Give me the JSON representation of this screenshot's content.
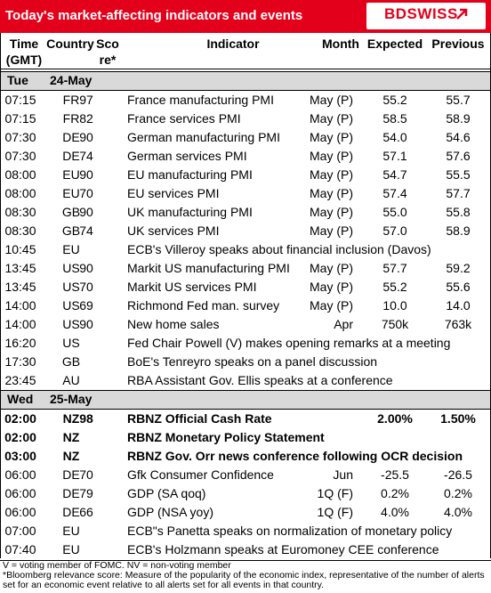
{
  "header": {
    "title": "Today's market-affecting indicators and events",
    "logo": "BDSWISS"
  },
  "columns": [
    [
      "Time",
      "(GMT)"
    ],
    [
      "Country"
    ],
    [
      "Sco",
      "re*"
    ],
    [
      "Indicator"
    ],
    [
      "Month"
    ],
    [
      "Expected"
    ],
    [
      "Previous"
    ]
  ],
  "sections": [
    {
      "day": "Tue",
      "date": "24-May",
      "bold_rows": [],
      "rows": [
        [
          "07:15",
          "FR",
          "97",
          "France manufacturing PMI",
          "May (P)",
          "55.2",
          "55.7"
        ],
        [
          "07:15",
          "FR",
          "82",
          "France services PMI",
          "May (P)",
          "58.5",
          "58.9"
        ],
        [
          "07:30",
          "DE",
          "90",
          "German manufacturing PMI",
          "May (P)",
          "54.0",
          "54.6"
        ],
        [
          "07:30",
          "DE",
          "74",
          "German services PMI",
          "May (P)",
          "57.1",
          "57.6"
        ],
        [
          "08:00",
          "EU",
          "90",
          "EU manufacturing PMI",
          "May (P)",
          "54.7",
          "55.5"
        ],
        [
          "08:00",
          "EU",
          "70",
          "EU services PMI",
          "May (P)",
          "57.4",
          "57.7"
        ],
        [
          "08:30",
          "GB",
          "90",
          "UK manufacturing PMI",
          "May (P)",
          "55.0",
          "55.8"
        ],
        [
          "08:30",
          "GB",
          "74",
          "UK services PMI",
          "May (P)",
          "57.0",
          "58.9"
        ],
        [
          "10:45",
          "EU",
          null,
          "ECB's Villeroy speaks about financial inclusion (Davos)",
          null,
          null,
          null
        ],
        [
          "13:45",
          "US",
          "90",
          "Markit US manufacturing PMI",
          "May (P)",
          "57.7",
          "59.2"
        ],
        [
          "13:45",
          "US",
          "70",
          "Markit US services PMI",
          "May (P)",
          "55.2",
          "55.6"
        ],
        [
          "14:00",
          "US",
          "69",
          "Richmond Fed man. survey",
          "May (P)",
          "10.0",
          "14.0"
        ],
        [
          "14:00",
          "US",
          "90",
          "New home sales",
          "Apr",
          "750k",
          "763k"
        ],
        [
          "16:20",
          "US",
          null,
          "Fed Chair Powell (V) makes opening remarks at a meeting",
          null,
          null,
          null
        ],
        [
          "17:30",
          "GB",
          null,
          "BoE's Tenreyro speaks on a panel discussion",
          null,
          null,
          null
        ],
        [
          "23:45",
          "AU",
          null,
          "RBA Assistant Gov. Ellis speaks at a conference",
          null,
          null,
          null
        ]
      ]
    },
    {
      "day": "Wed",
      "date": "25-May",
      "bold_rows": [
        0,
        1,
        2
      ],
      "rows": [
        [
          "02:00",
          "NZ",
          "98",
          "RBNZ Official Cash Rate",
          null,
          "2.00%",
          "1.50%"
        ],
        [
          "02:00",
          "NZ",
          null,
          "RBNZ Monetary Policy Statement",
          null,
          null,
          null
        ],
        [
          "03:00",
          "NZ",
          null,
          "RBNZ Gov. Orr news conference following OCR decision",
          null,
          null,
          null
        ],
        [
          "06:00",
          "DE",
          "70",
          "Gfk Consumer Confidence",
          "Jun",
          "-25.5",
          "-26.5"
        ],
        [
          "06:00",
          "DE",
          "79",
          "GDP (SA qoq)",
          "1Q (F)",
          "0.2%",
          "0.2%"
        ],
        [
          "06:00",
          "DE",
          "66",
          "GDP (NSA yoy)",
          "1Q (F)",
          "4.0%",
          "4.0%"
        ],
        [
          "07:00",
          "EU",
          null,
          "ECB\"s Panetta speaks on normalization of monetary policy",
          null,
          null,
          null
        ],
        [
          "07:40",
          "EU",
          null,
          "ECB's Holzmann speaks at Euromoney CEE conference",
          null,
          null,
          null
        ]
      ]
    }
  ],
  "notes": [
    "V = voting member of FOMC. NV = non-voting member",
    "*Bloomberg relevance score:  Measure of the popularity of the economic index, representative of the number of alerts set for an economic event relative to all alerts set for all events in that country."
  ]
}
